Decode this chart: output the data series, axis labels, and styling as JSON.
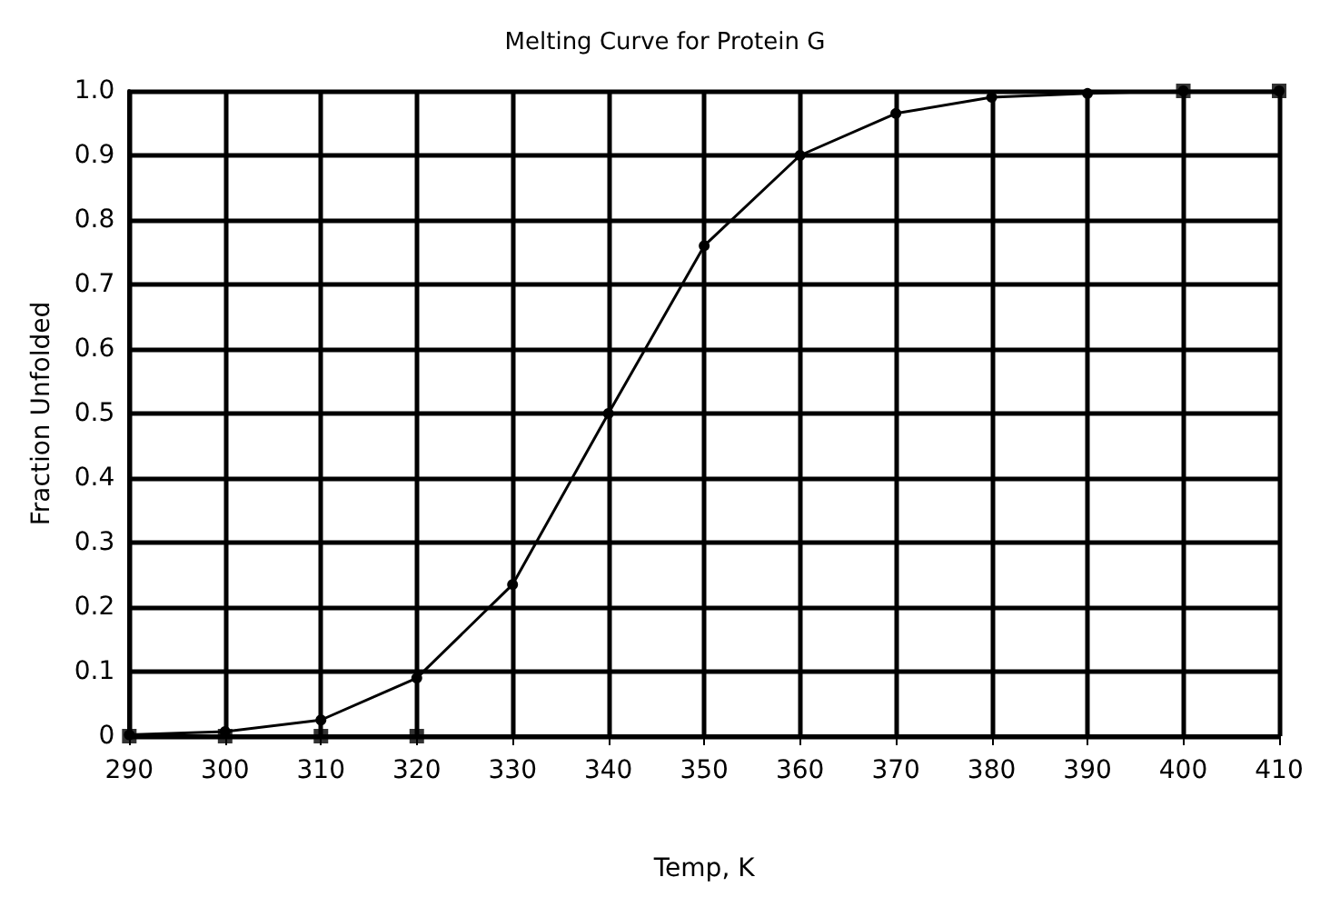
{
  "chart_data": {
    "type": "line",
    "title": "Melting Curve for Protein G",
    "xlabel": "Temp, K",
    "ylabel": "Fraction Unfolded",
    "series": [
      {
        "color": "#000000",
        "marker": "circle",
        "x": [
          290,
          300,
          310,
          320,
          330,
          340,
          350,
          360,
          370,
          380,
          390,
          400,
          410
        ],
        "values": [
          0.002,
          0.007,
          0.025,
          0.09,
          0.235,
          0.5,
          0.76,
          0.9,
          0.965,
          0.99,
          0.996,
          1.0,
          1.0
        ]
      },
      {
        "type": "scatter",
        "color": "#000000",
        "marker": "square",
        "x": [
          290,
          300,
          310,
          320,
          400,
          410
        ],
        "values": [
          0,
          0,
          0,
          0,
          1,
          1
        ]
      }
    ],
    "xlim": [
      290,
      410
    ],
    "xticks": [
      290,
      300,
      310,
      320,
      330,
      340,
      350,
      360,
      370,
      380,
      390,
      400,
      410
    ],
    "ylim": [
      0,
      1
    ],
    "yticks": [
      0,
      0.1,
      0.2,
      0.3,
      0.4,
      0.5,
      0.6,
      0.7,
      0.8,
      0.9,
      {
        "value": 1,
        "label": "1.0"
      }
    ],
    "grid": true,
    "line_style": "solid"
  }
}
